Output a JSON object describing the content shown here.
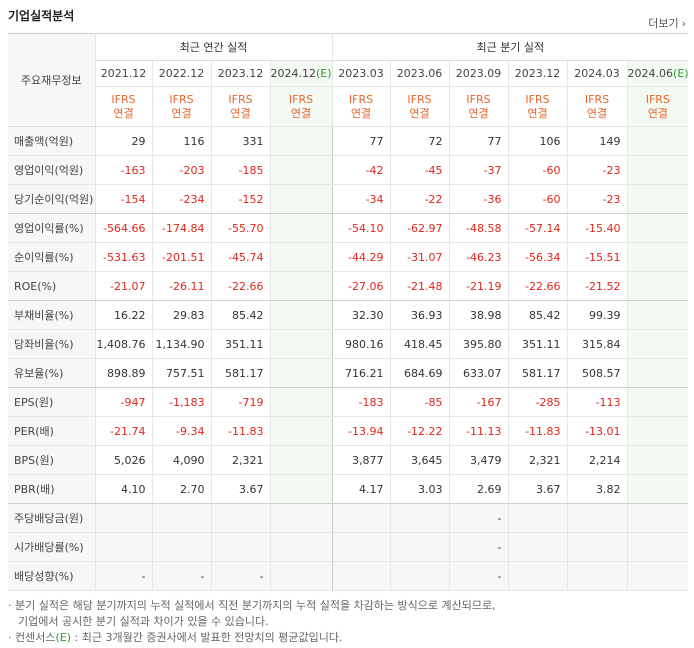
{
  "header": {
    "title": "기업실적분석",
    "more": "더보기"
  },
  "table": {
    "corner": "주요재무정보",
    "groups": [
      {
        "label": "최근 연간 실적",
        "span": 4
      },
      {
        "label": "최근 분기 실적",
        "span": 6
      }
    ],
    "periods": [
      {
        "date": "2021.12"
      },
      {
        "date": "2022.12"
      },
      {
        "date": "2023.12"
      },
      {
        "date": "2024.12",
        "mark": "(E)"
      },
      {
        "date": "2023.03"
      },
      {
        "date": "2023.06"
      },
      {
        "date": "2023.09"
      },
      {
        "date": "2023.12"
      },
      {
        "date": "2024.03"
      },
      {
        "date": "2024.06",
        "mark": "(E)"
      }
    ],
    "standards": [
      [
        "IFRS",
        "연결"
      ],
      [
        "IFRS",
        "연결"
      ],
      [
        "IFRS",
        "연결"
      ],
      [
        "IFRS",
        "연결"
      ],
      [
        "IFRS",
        "연결"
      ],
      [
        "IFRS",
        "연결"
      ],
      [
        "IFRS",
        "연결"
      ],
      [
        "IFRS",
        "연결"
      ],
      [
        "IFRS",
        "연결"
      ],
      [
        "IFRS",
        "연결"
      ]
    ],
    "rows": [
      {
        "label": "매출액(억원)",
        "values": [
          "29",
          "116",
          "331",
          null,
          "77",
          "72",
          "77",
          "106",
          "149",
          null
        ]
      },
      {
        "label": "영업이익(억원)",
        "values": [
          "-163",
          "-203",
          "-185",
          null,
          "-42",
          "-45",
          "-37",
          "-60",
          "-23",
          null
        ]
      },
      {
        "label": "당기순이익(억원)",
        "values": [
          "-154",
          "-234",
          "-152",
          null,
          "-34",
          "-22",
          "-36",
          "-60",
          "-23",
          null
        ]
      },
      {
        "label": "영업이익률(%)",
        "values": [
          "-564.66",
          "-174.84",
          "-55.70",
          null,
          "-54.10",
          "-62.97",
          "-48.58",
          "-57.14",
          "-15.40",
          null
        ]
      },
      {
        "label": "순이익률(%)",
        "values": [
          "-531.63",
          "-201.51",
          "-45.74",
          null,
          "-44.29",
          "-31.07",
          "-46.23",
          "-56.34",
          "-15.51",
          null
        ]
      },
      {
        "label": "ROE(%)",
        "values": [
          "-21.07",
          "-26.11",
          "-22.66",
          null,
          "-27.06",
          "-21.48",
          "-21.19",
          "-22.66",
          "-21.52",
          null
        ]
      },
      {
        "label": "부채비율(%)",
        "values": [
          "16.22",
          "29.83",
          "85.42",
          null,
          "32.30",
          "36.93",
          "38.98",
          "85.42",
          "99.39",
          null
        ]
      },
      {
        "label": "당좌비율(%)",
        "values": [
          "1,408.76",
          "1,134.90",
          "351.11",
          null,
          "980.16",
          "418.45",
          "395.80",
          "351.11",
          "315.84",
          null
        ]
      },
      {
        "label": "유보율(%)",
        "values": [
          "898.89",
          "757.51",
          "581.17",
          null,
          "716.21",
          "684.69",
          "633.07",
          "581.17",
          "508.57",
          null
        ]
      },
      {
        "label": "EPS(원)",
        "values": [
          "-947",
          "-1,183",
          "-719",
          null,
          "-183",
          "-85",
          "-167",
          "-285",
          "-113",
          null
        ]
      },
      {
        "label": "PER(배)",
        "values": [
          "-21.74",
          "-9.34",
          "-11.83",
          null,
          "-13.94",
          "-12.22",
          "-11.13",
          "-11.83",
          "-13.01",
          null
        ]
      },
      {
        "label": "BPS(원)",
        "values": [
          "5,026",
          "4,090",
          "2,321",
          null,
          "3,877",
          "3,645",
          "3,479",
          "2,321",
          "2,214",
          null
        ]
      },
      {
        "label": "PBR(배)",
        "values": [
          "4.10",
          "2.70",
          "3.67",
          null,
          "4.17",
          "3.03",
          "2.69",
          "3.67",
          "3.82",
          null
        ]
      },
      {
        "label": "주당배당금(원)",
        "values": [
          null,
          null,
          null,
          null,
          null,
          null,
          "-",
          null,
          null,
          null
        ]
      },
      {
        "label": "시가배당률(%)",
        "values": [
          null,
          null,
          null,
          null,
          null,
          null,
          "-",
          null,
          null,
          null
        ]
      },
      {
        "label": "배당성향(%)",
        "values": [
          "-",
          "-",
          "-",
          null,
          null,
          null,
          "-",
          null,
          null,
          null
        ]
      }
    ]
  },
  "notes": [
    {
      "lines": [
        "분기 실적은 해당 분기까지의 누적 실적에서 직전 분기까지의 누적 실적을 차감하는 방식으로 계산되므로,",
        "기업에서 공시한 분기 실적과 차이가 있을 수 있습니다."
      ]
    },
    {
      "lead": "컨센서스",
      "mark": "(E)",
      "text": " : 최근 3개월간 증권사에서 발표한 전망치의 평균값입니다."
    }
  ]
}
